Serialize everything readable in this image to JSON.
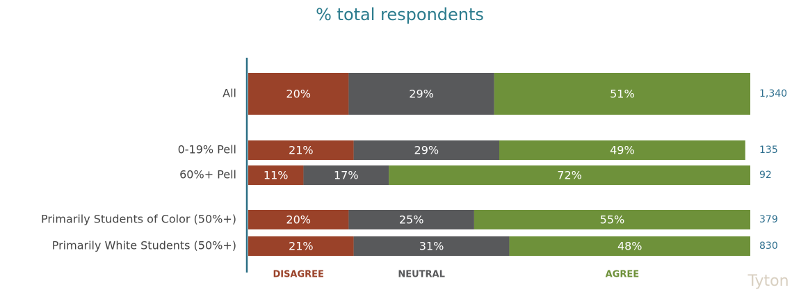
{
  "chart_data": {
    "type": "stacked-bar-horizontal",
    "title": "% total respondents",
    "categories": [
      "All",
      "0-19% Pell",
      "60%+ Pell",
      "Primarily Students of Color (50%+)",
      "Primarily White Students (50%+)"
    ],
    "series": [
      {
        "name": "DISAGREE",
        "color": "#9a4229",
        "values": [
          20,
          21,
          11,
          20,
          21
        ],
        "value_labels": [
          "20%",
          "21%",
          "11%",
          "20%",
          "21%"
        ]
      },
      {
        "name": "NEUTRAL",
        "color": "#58595b",
        "values": [
          29,
          29,
          17,
          25,
          31
        ],
        "value_labels": [
          "29%",
          "29%",
          "17%",
          "25%",
          "31%"
        ]
      },
      {
        "name": "AGREE",
        "color": "#6e913a",
        "values": [
          51,
          49,
          72,
          55,
          48
        ],
        "value_labels": [
          "51%",
          "49%",
          "72%",
          "55%",
          "48%"
        ]
      }
    ],
    "counts": {
      "values": [
        1340,
        135,
        92,
        379,
        830
      ],
      "value_labels": [
        "1,340",
        "135",
        "92",
        "379",
        "830"
      ]
    },
    "xlim": [
      0,
      100
    ],
    "logo": "Tyton"
  }
}
